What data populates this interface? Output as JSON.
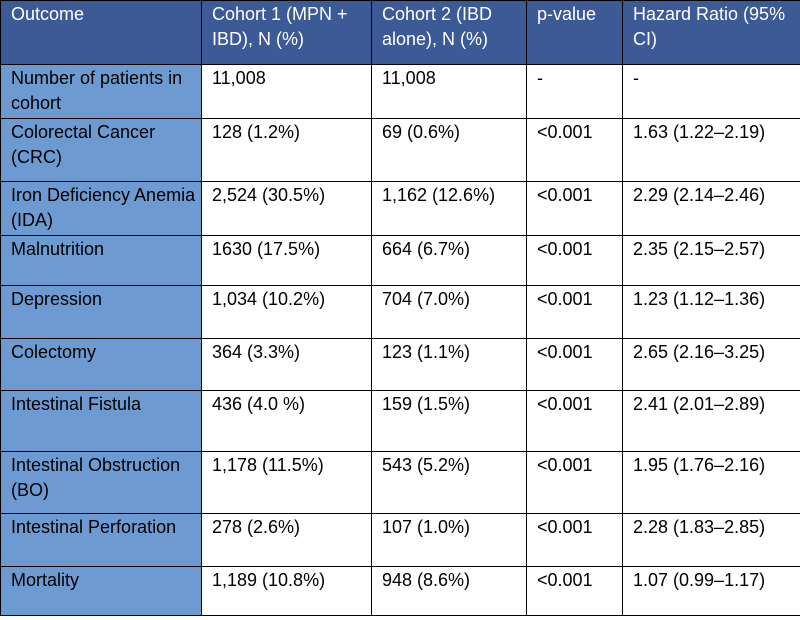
{
  "table": {
    "headers": [
      "Outcome",
      "Cohort 1 (MPN + IBD), N (%)",
      "Cohort 2 (IBD alone), N (%)",
      "p-value",
      "Hazard Ratio (95% CI)"
    ],
    "rows": [
      [
        "Number of patients in cohort",
        "11,008",
        "11,008",
        "-",
        "-"
      ],
      [
        "Colorectal Cancer (CRC)",
        "128 (1.2%)",
        "69 (0.6%)",
        "<0.001",
        "1.63 (1.22–2.19)"
      ],
      [
        "Iron Deficiency Anemia (IDA)",
        "2,524 (30.5%)",
        "1,162 (12.6%)",
        "<0.001",
        "2.29 (2.14–2.46)"
      ],
      [
        "Malnutrition",
        "1630 (17.5%)",
        "664 (6.7%)",
        "<0.001",
        "2.35 (2.15–2.57)"
      ],
      [
        "Depression",
        "1,034 (10.2%)",
        "704 (7.0%)",
        "<0.001",
        "1.23 (1.12–1.36)"
      ],
      [
        "Colectomy",
        "364 (3.3%)",
        "123 (1.1%)",
        "<0.001",
        "2.65 (2.16–3.25)"
      ],
      [
        "Intestinal Fistula",
        "436 (4.0 %)",
        "159 (1.5%)",
        "<0.001",
        "2.41 (2.01–2.89)"
      ],
      [
        "Intestinal Obstruction (BO)",
        "1,178 (11.5%)",
        "543 (5.2%)",
        "<0.001",
        "1.95 (1.76–2.16)"
      ],
      [
        "Intestinal Perforation",
        "278 (2.6%)",
        "107 (1.0%)",
        "<0.001",
        "2.28 (1.83–2.85)"
      ],
      [
        "Mortality",
        "1,189 (10.8%)",
        "948 (8.6%)",
        "<0.001",
        "1.07 (0.99–1.17)"
      ]
    ]
  },
  "colors": {
    "header_bg": "#3c5a96",
    "label_col_bg": "#6e9ad2",
    "cell_bg": "#ffffff"
  }
}
